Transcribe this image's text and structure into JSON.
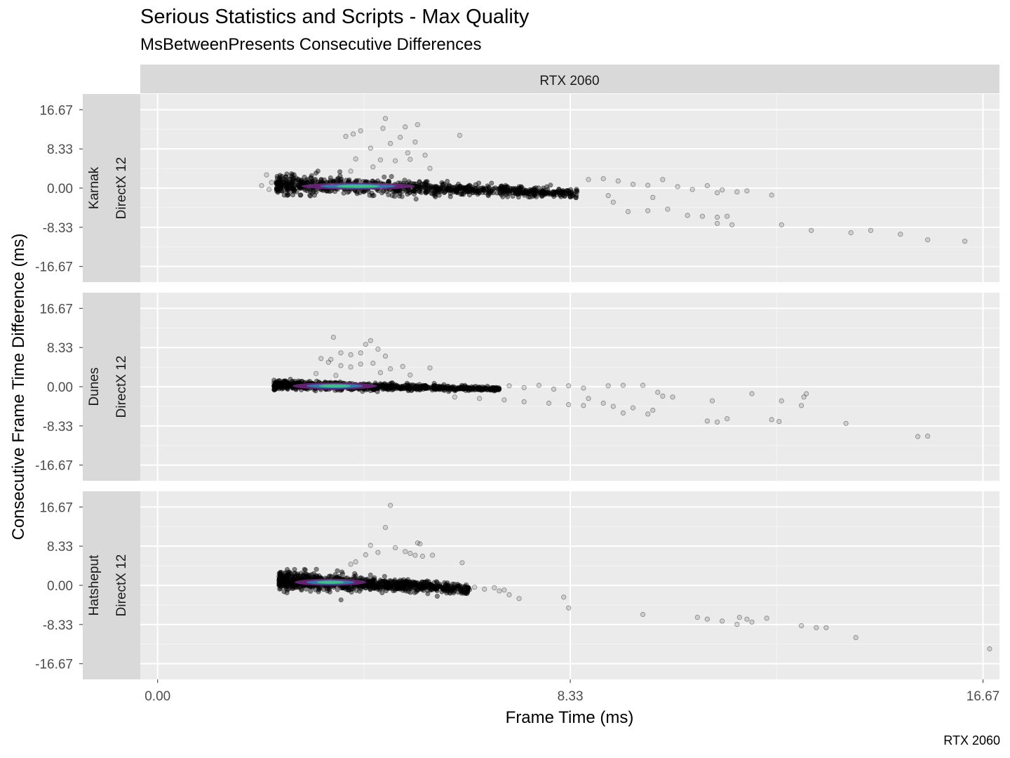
{
  "chart_data": {
    "type": "scatter",
    "title": "Serious Statistics and Scripts - Max Quality",
    "subtitle": "MsBetweenPresents Consecutive Differences",
    "caption": "RTX 2060",
    "xlabel": "Frame Time (ms)",
    "ylabel": "Consecutive Frame Time Difference (ms)",
    "xlim": [
      -0.35,
      17.0
    ],
    "ylim": [
      -20,
      20
    ],
    "x_ticks": [
      "0.00",
      "8.33",
      "16.67"
    ],
    "x_tick_values": [
      0,
      8.333,
      16.667
    ],
    "y_ticks": [
      "16.67",
      "8.33",
      "0.00",
      "-8.33",
      "-16.67"
    ],
    "y_tick_values": [
      16.667,
      8.333,
      0,
      -8.333,
      -16.667
    ],
    "grid": true,
    "column_strip": "RTX 2060",
    "panels": [
      {
        "strip_api": "DirectX 12",
        "strip_location": "Karnak",
        "core": {
          "x_start": 2.4,
          "x_end": 8.5,
          "y_start": 1.0,
          "y_end": -1.2,
          "spread": 2.0
        },
        "outliers": [
          [
            2.2,
            2.8
          ],
          [
            2.1,
            0.5
          ],
          [
            2.25,
            -0.3
          ],
          [
            2.3,
            1.2
          ],
          [
            3.8,
            11.0
          ],
          [
            3.95,
            11.5
          ],
          [
            4.1,
            12.2
          ],
          [
            4.3,
            8.5
          ],
          [
            4.55,
            12.7
          ],
          [
            4.7,
            9.5
          ],
          [
            4.6,
            14.8
          ],
          [
            4.9,
            10.8
          ],
          [
            5.0,
            13.0
          ],
          [
            5.2,
            9.8
          ],
          [
            5.25,
            13.5
          ],
          [
            5.05,
            7.5
          ],
          [
            5.4,
            7.0
          ],
          [
            5.1,
            6.1
          ],
          [
            4.0,
            6.2
          ],
          [
            4.5,
            6.0
          ],
          [
            6.1,
            11.2
          ],
          [
            4.35,
            4.5
          ],
          [
            4.8,
            5.8
          ],
          [
            5.5,
            4.2
          ],
          [
            3.9,
            3.6
          ],
          [
            8.7,
            1.8
          ],
          [
            9.0,
            2.0
          ],
          [
            9.3,
            1.5
          ],
          [
            9.6,
            0.8
          ],
          [
            9.9,
            0.6
          ],
          [
            10.2,
            1.8
          ],
          [
            10.5,
            0.3
          ],
          [
            10.8,
            -0.3
          ],
          [
            11.1,
            0.5
          ],
          [
            11.4,
            -0.4
          ],
          [
            11.7,
            -0.8
          ],
          [
            9.2,
            -3.0
          ],
          [
            9.5,
            -5.0
          ],
          [
            9.9,
            -4.8
          ],
          [
            10.3,
            -4.5
          ],
          [
            10.7,
            -5.8
          ],
          [
            11.0,
            -6.0
          ],
          [
            11.3,
            -6.2
          ],
          [
            11.5,
            -6.0
          ],
          [
            11.3,
            -1.0
          ],
          [
            12.4,
            -1.5
          ],
          [
            11.9,
            -0.6
          ],
          [
            9.1,
            -1.6
          ],
          [
            10.0,
            -2.0
          ],
          [
            11.3,
            -7.5
          ],
          [
            11.6,
            -7.8
          ],
          [
            12.6,
            -7.8
          ],
          [
            13.2,
            -9.0
          ],
          [
            14.0,
            -9.5
          ],
          [
            14.4,
            -9.0
          ],
          [
            15.0,
            -9.8
          ],
          [
            15.55,
            -11.0
          ],
          [
            16.3,
            -11.3
          ]
        ]
      },
      {
        "strip_api": "DirectX 12",
        "strip_location": "Dunes",
        "core": {
          "x_start": 2.35,
          "x_end": 6.9,
          "y_start": 0.4,
          "y_end": -0.5,
          "spread": 0.9
        },
        "outliers": [
          [
            3.55,
            10.5
          ],
          [
            4.2,
            9.0
          ],
          [
            4.3,
            9.8
          ],
          [
            4.45,
            8.0
          ],
          [
            3.7,
            7.2
          ],
          [
            3.9,
            6.8
          ],
          [
            4.1,
            7.2
          ],
          [
            3.5,
            5.8
          ],
          [
            3.7,
            4.5
          ],
          [
            3.9,
            4.2
          ],
          [
            4.1,
            4.8
          ],
          [
            4.35,
            5.0
          ],
          [
            4.6,
            6.5
          ],
          [
            3.3,
            6.0
          ],
          [
            4.7,
            3.8
          ],
          [
            5.1,
            2.5
          ],
          [
            4.5,
            3.0
          ],
          [
            3.2,
            2.8
          ],
          [
            3.6,
            2.4
          ],
          [
            3.45,
            5.2
          ],
          [
            4.95,
            4.3
          ],
          [
            5.5,
            4.0
          ],
          [
            7.1,
            0.2
          ],
          [
            7.4,
            -0.2
          ],
          [
            7.7,
            0.3
          ],
          [
            8.0,
            -0.5
          ],
          [
            8.3,
            0.2
          ],
          [
            8.6,
            -0.3
          ],
          [
            9.1,
            0.2
          ],
          [
            9.4,
            0.3
          ],
          [
            9.8,
            0.3
          ],
          [
            6.0,
            -2.2
          ],
          [
            6.5,
            -2.5
          ],
          [
            7.0,
            -2.8
          ],
          [
            7.4,
            -3.2
          ],
          [
            7.9,
            -3.5
          ],
          [
            8.3,
            -3.8
          ],
          [
            8.6,
            -4.0
          ],
          [
            9.2,
            -4.2
          ],
          [
            9.6,
            -4.5
          ],
          [
            9.4,
            -5.6
          ],
          [
            9.0,
            -3.5
          ],
          [
            8.7,
            -2.5
          ],
          [
            10.1,
            -1.2
          ],
          [
            10.4,
            -2.2
          ],
          [
            10.0,
            -5.0
          ],
          [
            9.9,
            -5.8
          ],
          [
            10.2,
            -2.0
          ],
          [
            11.1,
            -7.3
          ],
          [
            11.3,
            -7.5
          ],
          [
            11.5,
            -6.8
          ],
          [
            11.2,
            -3.0
          ],
          [
            12.4,
            -7.0
          ],
          [
            12.0,
            -1.5
          ],
          [
            13.0,
            -4.0
          ],
          [
            13.1,
            -1.5
          ],
          [
            13.05,
            -2.2
          ],
          [
            12.55,
            -7.4
          ],
          [
            12.6,
            -3.0
          ],
          [
            13.9,
            -7.8
          ],
          [
            15.35,
            -10.6
          ],
          [
            15.55,
            -10.5
          ]
        ]
      },
      {
        "strip_api": "DirectX 12",
        "strip_location": "Hatsheput",
        "core": {
          "x_start": 2.45,
          "x_end": 6.3,
          "y_start": 1.2,
          "y_end": -0.8,
          "spread": 2.0
        },
        "outliers": [
          [
            4.7,
            17.0
          ],
          [
            4.6,
            12.3
          ],
          [
            4.3,
            8.5
          ],
          [
            4.2,
            6.5
          ],
          [
            4.45,
            7.0
          ],
          [
            4.0,
            5.0
          ],
          [
            3.9,
            4.5
          ],
          [
            4.8,
            8.0
          ],
          [
            5.0,
            7.2
          ],
          [
            5.1,
            6.8
          ],
          [
            5.2,
            6.4
          ],
          [
            5.25,
            9.0
          ],
          [
            5.35,
            6.2
          ],
          [
            5.55,
            6.4
          ],
          [
            5.3,
            8.8
          ],
          [
            6.15,
            4.8
          ],
          [
            6.4,
            -0.4
          ],
          [
            6.6,
            -0.8
          ],
          [
            6.8,
            -0.5
          ],
          [
            6.9,
            -1.2
          ],
          [
            7.1,
            -2.0
          ],
          [
            7.3,
            -2.8
          ],
          [
            7.0,
            -1.0
          ],
          [
            8.2,
            -2.5
          ],
          [
            8.3,
            -4.8
          ],
          [
            9.8,
            -6.2
          ],
          [
            10.9,
            -6.8
          ],
          [
            11.1,
            -7.2
          ],
          [
            11.4,
            -7.6
          ],
          [
            11.7,
            -8.3
          ],
          [
            11.75,
            -6.8
          ],
          [
            11.9,
            -7.2
          ],
          [
            12.0,
            -7.8
          ],
          [
            12.3,
            -7.0
          ],
          [
            13.0,
            -8.6
          ],
          [
            13.3,
            -9.0
          ],
          [
            13.5,
            -9.0
          ],
          [
            14.1,
            -11.1
          ],
          [
            16.8,
            -13.5
          ]
        ]
      }
    ]
  }
}
